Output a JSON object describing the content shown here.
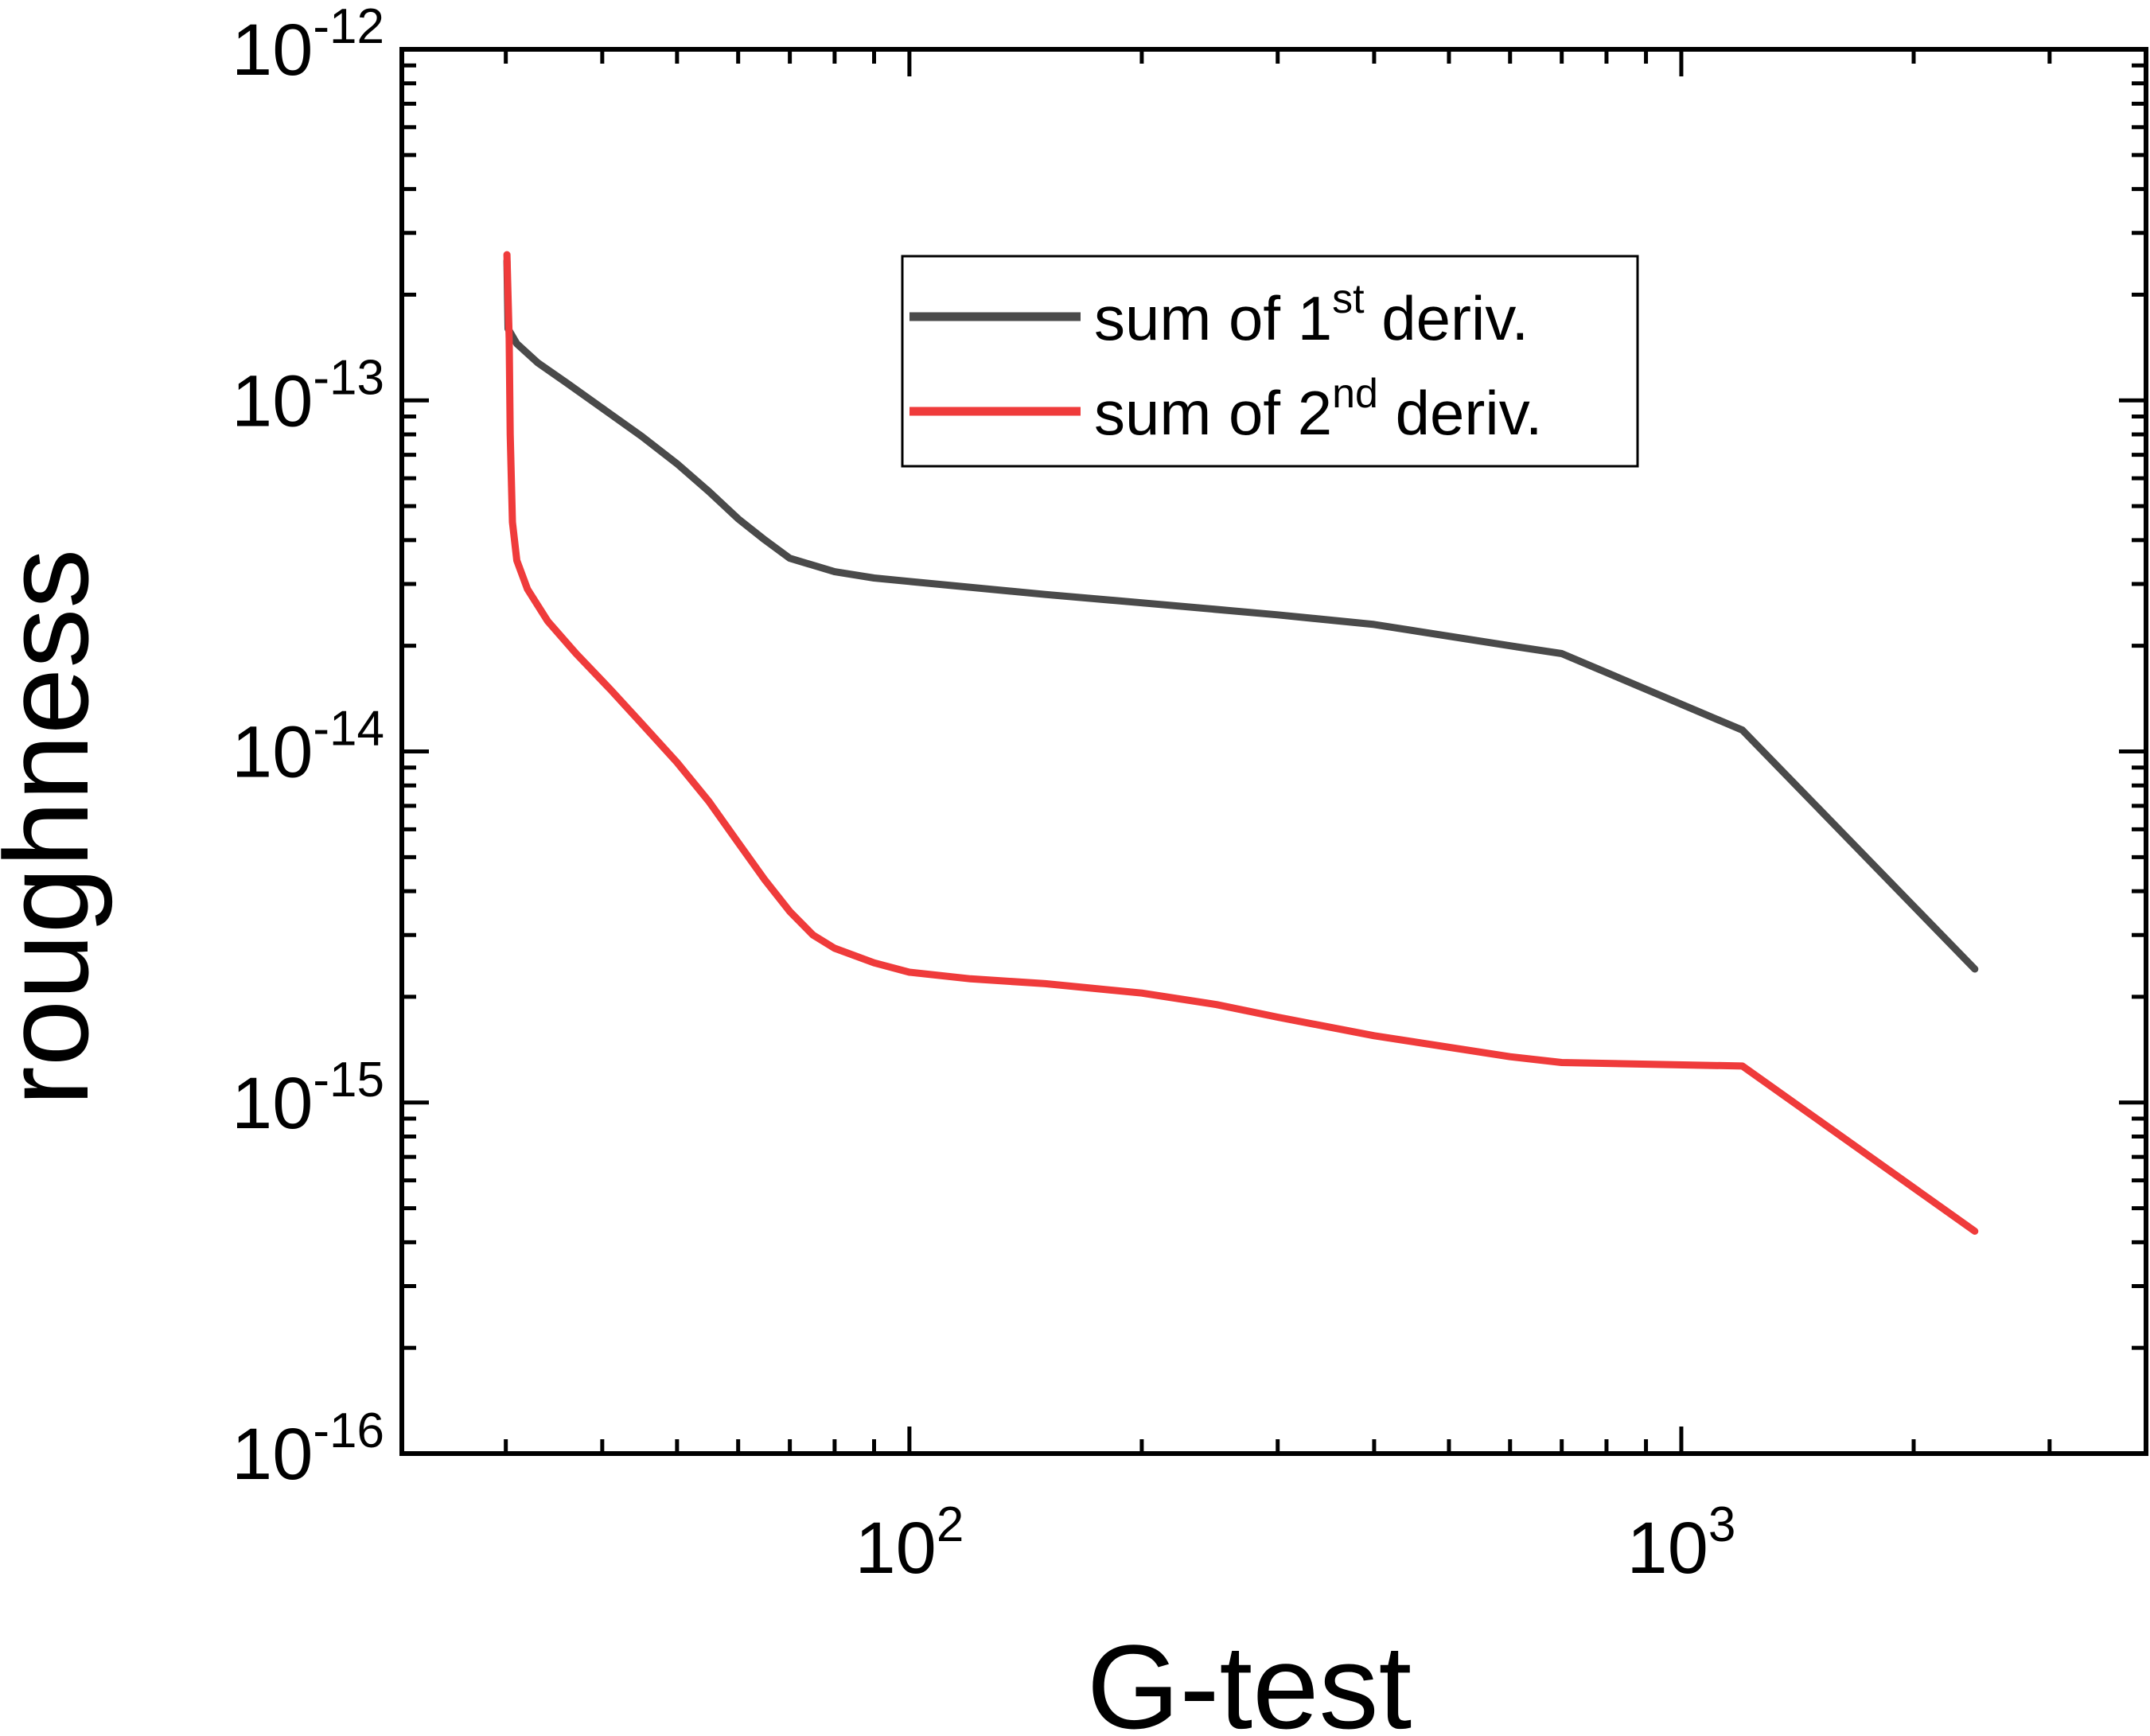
{
  "chart_data": {
    "type": "line",
    "xlabel": "G-test",
    "ylabel": "roughness",
    "xscale": "log",
    "yscale": "log",
    "xlim": [
      22,
      4000
    ],
    "ylim": [
      1e-16,
      1e-12
    ],
    "x_ticks": [
      {
        "value": 100,
        "base": "10",
        "exp": "2"
      },
      {
        "value": 1000,
        "base": "10",
        "exp": "3"
      }
    ],
    "y_ticks": [
      {
        "value": 1e-16,
        "base": "10",
        "exp": "-16"
      },
      {
        "value": 1e-15,
        "base": "10",
        "exp": "-15"
      },
      {
        "value": 1e-14,
        "base": "10",
        "exp": "-14"
      },
      {
        "value": 1e-13,
        "base": "10",
        "exp": "-13"
      },
      {
        "value": 1e-12,
        "base": "10",
        "exp": "-12"
      }
    ],
    "grid": false,
    "legend_position": "top-right",
    "series": [
      {
        "name": "sum of 1st deriv.",
        "label_parts": {
          "before": "sum of 1",
          "sup": "st",
          "after": " deriv."
        },
        "color": "#4a4a4a",
        "points": [
          [
            30.1,
            2.5e-13
          ],
          [
            30.2,
            1.6e-13
          ],
          [
            31,
            1.45e-13
          ],
          [
            33,
            1.28e-13
          ],
          [
            36,
            1.12e-13
          ],
          [
            40,
            9.5e-14
          ],
          [
            45,
            7.9e-14
          ],
          [
            50,
            6.6e-14
          ],
          [
            55,
            5.5e-14
          ],
          [
            60,
            4.6e-14
          ],
          [
            65,
            4e-14
          ],
          [
            70,
            3.55e-14
          ],
          [
            80,
            3.25e-14
          ],
          [
            90,
            3.12e-14
          ],
          [
            100,
            3.05e-14
          ],
          [
            150,
            2.8e-14
          ],
          [
            200,
            2.65e-14
          ],
          [
            300,
            2.45e-14
          ],
          [
            400,
            2.3e-14
          ],
          [
            600,
            2e-14
          ],
          [
            700,
            1.9e-14
          ],
          [
            1200,
            1.15e-14
          ],
          [
            2400,
            2.4e-15
          ]
        ]
      },
      {
        "name": "sum of 2nd deriv.",
        "label_parts": {
          "before": "sum of 2",
          "sup": "nd",
          "after": " deriv."
        },
        "color": "#ef3b3b",
        "points": [
          [
            30.1,
            2.6e-13
          ],
          [
            30.3,
            1.5e-13
          ],
          [
            30.4,
            8e-14
          ],
          [
            30.6,
            4.5e-14
          ],
          [
            31,
            3.5e-14
          ],
          [
            32,
            2.9e-14
          ],
          [
            34,
            2.35e-14
          ],
          [
            37,
            1.9e-14
          ],
          [
            41,
            1.5e-14
          ],
          [
            45,
            1.2e-14
          ],
          [
            50,
            9.3e-15
          ],
          [
            55,
            7.2e-15
          ],
          [
            60,
            5.5e-15
          ],
          [
            65,
            4.3e-15
          ],
          [
            70,
            3.5e-15
          ],
          [
            75,
            3e-15
          ],
          [
            80,
            2.75e-15
          ],
          [
            90,
            2.5e-15
          ],
          [
            100,
            2.35e-15
          ],
          [
            120,
            2.25e-15
          ],
          [
            150,
            2.18e-15
          ],
          [
            200,
            2.05e-15
          ],
          [
            250,
            1.9e-15
          ],
          [
            300,
            1.75e-15
          ],
          [
            400,
            1.55e-15
          ],
          [
            600,
            1.35e-15
          ],
          [
            700,
            1.3e-15
          ],
          [
            1200,
            1.27e-15
          ],
          [
            2400,
            4.3e-16
          ]
        ]
      }
    ]
  }
}
